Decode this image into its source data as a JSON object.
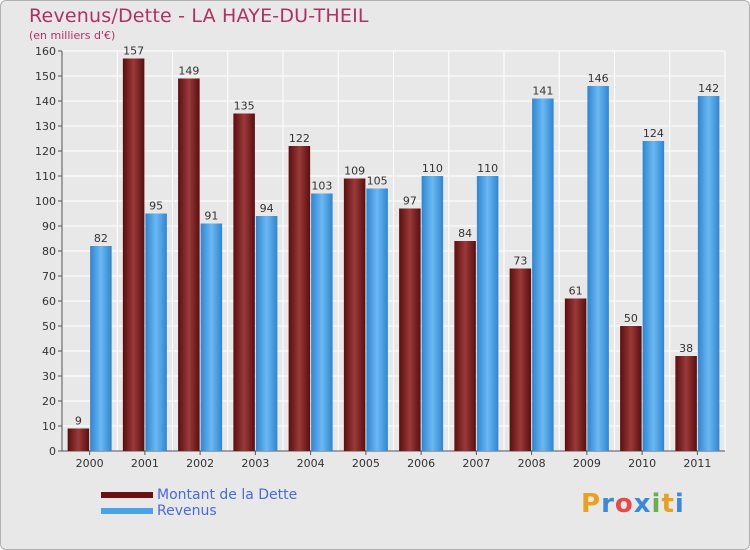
{
  "header": {
    "title": "Revenus/Dette - LA HAYE-DU-THEIL",
    "subtitle": "(en milliers d'€)"
  },
  "legend": {
    "items": [
      {
        "label": "Montant de la Dette",
        "color": "#7a1f1f"
      },
      {
        "label": "Revenus",
        "color": "#4aa3e8"
      }
    ]
  },
  "logo": {
    "text": "Proxiti",
    "colors": [
      "#e8a020",
      "#3a8ad8",
      "#e84a4a",
      "#3a8ad8",
      "#6ab04a",
      "#e8a020",
      "#3a8ad8"
    ]
  },
  "chart_data": {
    "type": "bar",
    "title": "Revenus/Dette - LA HAYE-DU-THEIL",
    "ylabel": "(en milliers d'€)",
    "xlabel": "",
    "categories": [
      "2000",
      "2001",
      "2002",
      "2003",
      "2004",
      "2005",
      "2006",
      "2007",
      "2008",
      "2009",
      "2010",
      "2011"
    ],
    "series": [
      {
        "name": "Montant de la Dette",
        "color": "#7a1f1f",
        "values": [
          9,
          157,
          149,
          135,
          122,
          109,
          97,
          84,
          73,
          61,
          50,
          38
        ]
      },
      {
        "name": "Revenus",
        "color": "#4aa3e8",
        "values": [
          82,
          95,
          91,
          94,
          103,
          105,
          110,
          110,
          141,
          146,
          124,
          142
        ]
      }
    ],
    "ylim": [
      0,
      160
    ],
    "yticks": [
      0,
      10,
      20,
      30,
      40,
      50,
      60,
      70,
      80,
      90,
      100,
      110,
      120,
      130,
      140,
      150,
      160
    ],
    "grid": true,
    "legend": "bottom-left"
  }
}
